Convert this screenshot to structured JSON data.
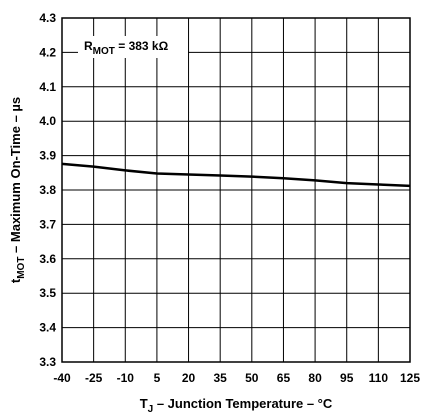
{
  "chart_data": {
    "type": "line",
    "xlabel_main": "T",
    "xlabel_sub": "J",
    "xlabel_rest": " – Junction Temperature – °C",
    "ylabel_main": "t",
    "ylabel_sub": "MOT",
    "ylabel_rest": " – Maximum On-Time – µs",
    "annotation_main": "R",
    "annotation_sub": "MOT",
    "annotation_rest": " = 383 kΩ",
    "xlim": [
      -40,
      125
    ],
    "ylim": [
      3.3,
      4.3
    ],
    "x_ticks": [
      "-40",
      "-25",
      "-10",
      "5",
      "20",
      "35",
      "50",
      "65",
      "80",
      "95",
      "110",
      "125"
    ],
    "x_tick_values": [
      -40,
      -25,
      -10,
      5,
      20,
      35,
      50,
      65,
      80,
      95,
      110,
      125
    ],
    "y_ticks": [
      "3.3",
      "3.4",
      "3.5",
      "3.6",
      "3.7",
      "3.8",
      "3.9",
      "4.0",
      "4.1",
      "4.2",
      "4.3"
    ],
    "y_tick_values": [
      3.3,
      3.4,
      3.5,
      3.6,
      3.7,
      3.8,
      3.9,
      4.0,
      4.1,
      4.2,
      4.3
    ],
    "grid": true,
    "series": [
      {
        "x": [
          -40,
          -25,
          -10,
          5,
          20,
          35,
          50,
          65,
          80,
          95,
          110,
          125
        ],
        "y": [
          3.876,
          3.868,
          3.857,
          3.848,
          3.845,
          3.842,
          3.839,
          3.834,
          3.828,
          3.82,
          3.816,
          3.812
        ]
      }
    ]
  }
}
